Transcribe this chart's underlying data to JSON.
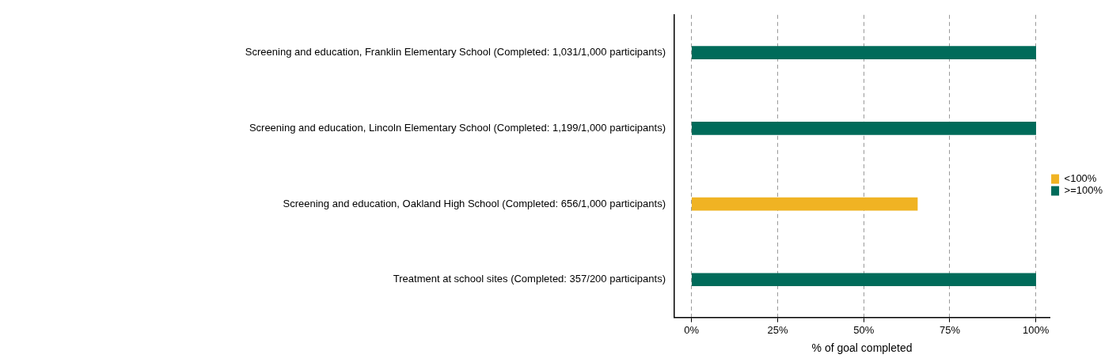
{
  "chart_data": {
    "type": "bar",
    "orientation": "horizontal",
    "categories": [
      "Screening and education, Franklin Elementary School (Completed: 1,031/1,000 participants)",
      "Screening and education, Lincoln Elementary School (Completed: 1,199/1,000 participants)",
      "Screening and education, Oakland High School (Completed: 656/1,000 participants)",
      "Treatment at school sites (Completed: 357/200 participants)"
    ],
    "series": [
      {
        "name": "<100%",
        "color": "#f0b323",
        "values": [
          null,
          null,
          65.6,
          null
        ]
      },
      {
        "name": ">=100%",
        "color": "#006b5a",
        "values": [
          100,
          100,
          null,
          100
        ]
      }
    ],
    "xlabel": "% of goal completed",
    "xlim": [
      -5,
      104
    ],
    "xticks": [
      {
        "value": 0,
        "label": "0%"
      },
      {
        "value": 25,
        "label": "25%"
      },
      {
        "value": 50,
        "label": "50%"
      },
      {
        "value": 75,
        "label": "75%"
      },
      {
        "value": 100,
        "label": "100%"
      }
    ],
    "grid": "x",
    "legend": "right"
  }
}
